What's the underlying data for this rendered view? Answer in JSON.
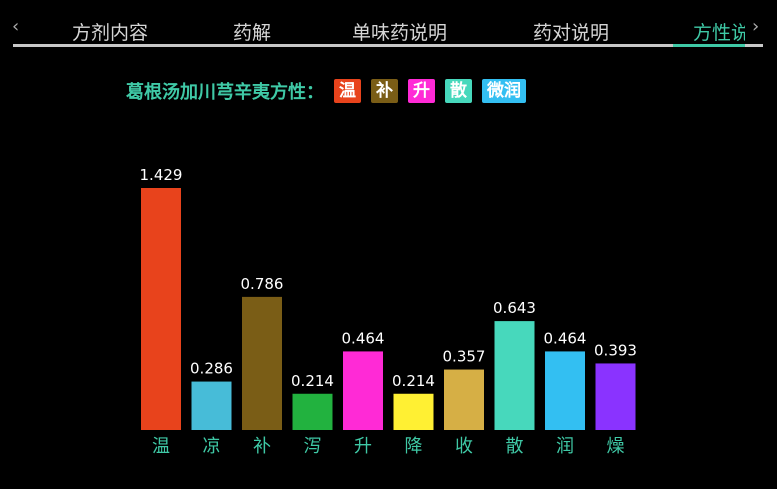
{
  "tabs": [
    {
      "label": "方剂内容",
      "active": false
    },
    {
      "label": "药解",
      "active": false
    },
    {
      "label": "单味药说明",
      "active": false
    },
    {
      "label": "药对说明",
      "active": false
    },
    {
      "label": "方性说",
      "active": true
    }
  ],
  "nav": {
    "prev_icon": "chevron-left-icon",
    "next_icon": "chevron-right-icon",
    "prev_glyph": "‹",
    "next_glyph": "›"
  },
  "formula_title": "葛根汤加川芎辛夷方性：",
  "property_tags": [
    {
      "label": "温",
      "color": "#e8431c"
    },
    {
      "label": "补",
      "color": "#7a5d16"
    },
    {
      "label": "升",
      "color": "#ff2ad6"
    },
    {
      "label": "散",
      "color": "#47d8bc"
    },
    {
      "label": "微润",
      "color": "#33bff2"
    }
  ],
  "chart_data": {
    "type": "bar",
    "title": "",
    "xlabel": "",
    "ylabel": "",
    "categories": [
      "温",
      "凉",
      "补",
      "泻",
      "升",
      "降",
      "收",
      "散",
      "润",
      "燥"
    ],
    "values": [
      1.429,
      0.286,
      0.786,
      0.214,
      0.464,
      0.214,
      0.357,
      0.643,
      0.464,
      0.393
    ],
    "colors": [
      "#e8431c",
      "#47bcd8",
      "#7a5d16",
      "#22b23f",
      "#ff2ad6",
      "#fff033",
      "#d6af45",
      "#47d8bc",
      "#33bff2",
      "#8a33ff"
    ],
    "ylim": [
      0,
      1.429
    ],
    "grid": false,
    "data_labels": true,
    "category_label_color": "#3fc9a6"
  }
}
